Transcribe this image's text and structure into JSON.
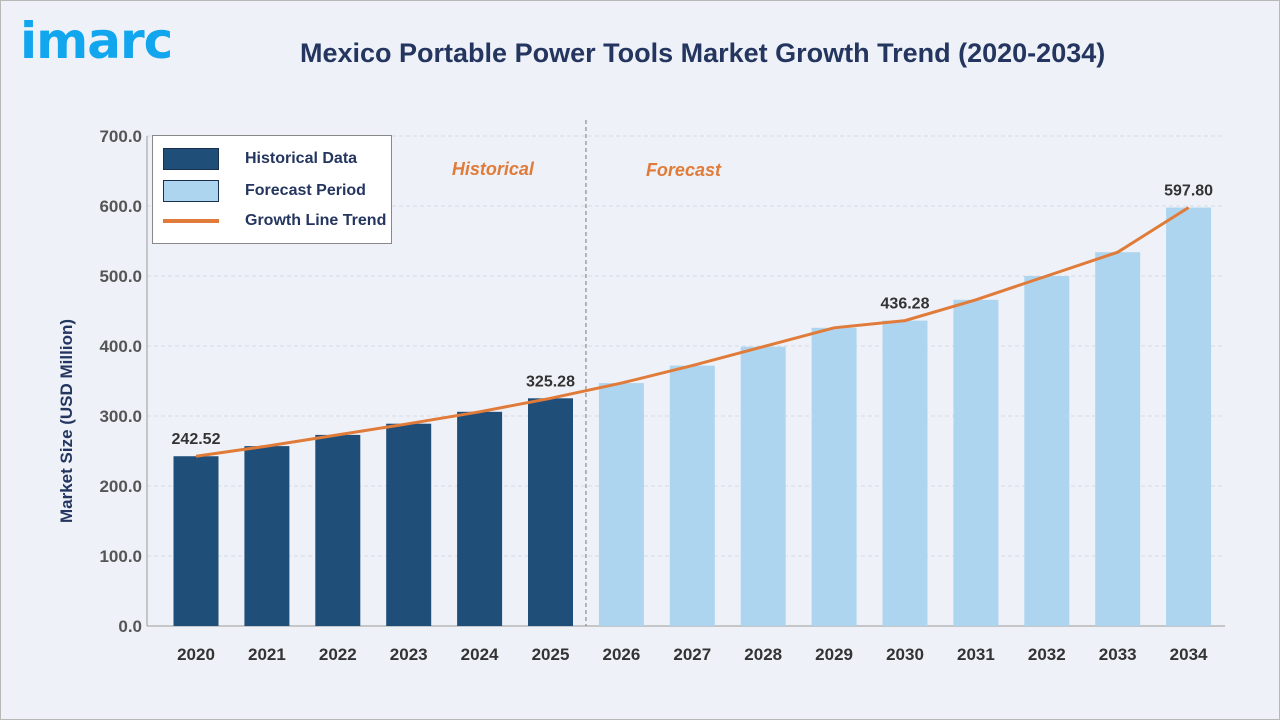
{
  "logo": "imarc",
  "chart_data": {
    "type": "bar",
    "title": "Mexico Portable Power Tools Market Growth Trend (2020-2034)",
    "ylabel": "Market Size (USD Million)",
    "xlabel": "",
    "ylim": [
      0,
      700
    ],
    "yticks": [
      "0.0",
      "100.0",
      "200.0",
      "300.0",
      "400.0",
      "500.0",
      "600.0",
      "700.0"
    ],
    "categories": [
      "2020",
      "2021",
      "2022",
      "2023",
      "2024",
      "2025",
      "2026",
      "2027",
      "2028",
      "2029",
      "2030",
      "2031",
      "2032",
      "2033",
      "2034"
    ],
    "values": [
      242.52,
      257,
      273,
      289,
      306,
      325.28,
      347,
      372,
      399,
      426,
      436.28,
      466,
      500,
      534,
      597.8
    ],
    "data_labels": {
      "2020": "242.52",
      "2025": "325.28",
      "2030": "436.28",
      "2034": "597.80"
    },
    "period_labels": {
      "historical": "Historical",
      "forecast": "Forecast"
    },
    "legend": [
      {
        "label": "Historical Data",
        "color": "#1f4e79"
      },
      {
        "label": "Forecast Period",
        "color": "#aed5f0"
      },
      {
        "label": "Growth Line Trend",
        "color": "#e07b39"
      }
    ],
    "historical_count": 6,
    "grid": true,
    "legend_position": "top-left"
  }
}
